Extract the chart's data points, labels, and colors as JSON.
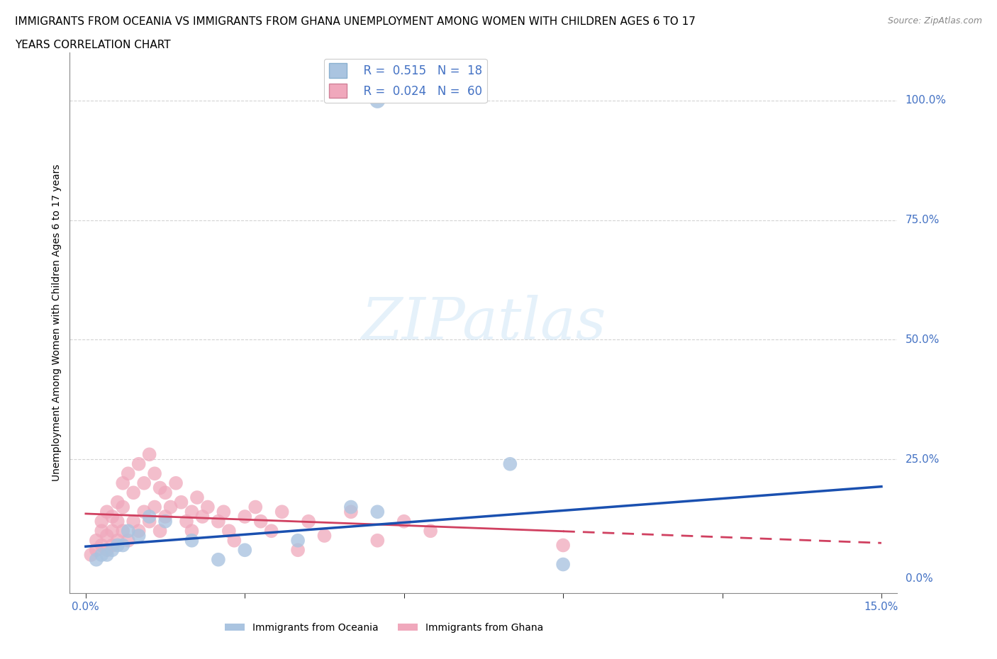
{
  "title_line1": "IMMIGRANTS FROM OCEANIA VS IMMIGRANTS FROM GHANA UNEMPLOYMENT AMONG WOMEN WITH CHILDREN AGES 6 TO 17",
  "title_line2": "YEARS CORRELATION CHART",
  "source": "Source: ZipAtlas.com",
  "ylabel": "Unemployment Among Women with Children Ages 6 to 17 years",
  "watermark": "ZIPatlas",
  "background_color": "#ffffff",
  "plot_bg_color": "#ffffff",
  "grid_color": "#c8c8c8",
  "oceania_color": "#aac4e0",
  "ghana_color": "#f0a8bc",
  "trendline_oceania_color": "#1a50b0",
  "trendline_ghana_color": "#d04060",
  "R_oceania": 0.515,
  "N_oceania": 18,
  "R_ghana": 0.024,
  "N_ghana": 60,
  "xmin": 0.0,
  "xmax": 0.15,
  "ymin": 0.0,
  "ymax": 1.1,
  "ytick_vals": [
    0.0,
    0.25,
    0.5,
    0.75,
    1.0
  ],
  "ytick_labels": [
    "0.0%",
    "25.0%",
    "50.0%",
    "75.0%",
    "100.0%"
  ],
  "oceania_x": [
    0.002,
    0.003,
    0.004,
    0.005,
    0.006,
    0.007,
    0.008,
    0.01,
    0.012,
    0.015,
    0.02,
    0.025,
    0.03,
    0.04,
    0.05,
    0.08,
    0.09,
    0.055
  ],
  "oceania_y": [
    0.04,
    0.05,
    0.05,
    0.06,
    0.07,
    0.07,
    0.1,
    0.09,
    0.13,
    0.12,
    0.08,
    0.04,
    0.06,
    0.08,
    0.15,
    0.24,
    0.03,
    0.14
  ],
  "ghana_x": [
    0.001,
    0.002,
    0.002,
    0.003,
    0.003,
    0.003,
    0.004,
    0.004,
    0.004,
    0.005,
    0.005,
    0.005,
    0.006,
    0.006,
    0.006,
    0.007,
    0.007,
    0.007,
    0.008,
    0.008,
    0.009,
    0.009,
    0.01,
    0.01,
    0.011,
    0.011,
    0.012,
    0.012,
    0.013,
    0.013,
    0.014,
    0.014,
    0.015,
    0.015,
    0.016,
    0.017,
    0.018,
    0.019,
    0.02,
    0.02,
    0.021,
    0.022,
    0.023,
    0.025,
    0.026,
    0.027,
    0.028,
    0.03,
    0.032,
    0.033,
    0.035,
    0.037,
    0.04,
    0.042,
    0.045,
    0.05,
    0.055,
    0.06,
    0.065,
    0.09
  ],
  "ghana_y": [
    0.05,
    0.06,
    0.08,
    0.1,
    0.12,
    0.07,
    0.14,
    0.09,
    0.06,
    0.13,
    0.1,
    0.07,
    0.16,
    0.12,
    0.08,
    0.2,
    0.15,
    0.1,
    0.22,
    0.08,
    0.18,
    0.12,
    0.24,
    0.1,
    0.2,
    0.14,
    0.26,
    0.12,
    0.22,
    0.15,
    0.19,
    0.1,
    0.18,
    0.13,
    0.15,
    0.2,
    0.16,
    0.12,
    0.14,
    0.1,
    0.17,
    0.13,
    0.15,
    0.12,
    0.14,
    0.1,
    0.08,
    0.13,
    0.15,
    0.12,
    0.1,
    0.14,
    0.06,
    0.12,
    0.09,
    0.14,
    0.08,
    0.12,
    0.1,
    0.07
  ],
  "title_fontsize": 11,
  "label_fontsize": 10,
  "tick_fontsize": 11,
  "legend_fontsize": 12,
  "source_fontsize": 9
}
